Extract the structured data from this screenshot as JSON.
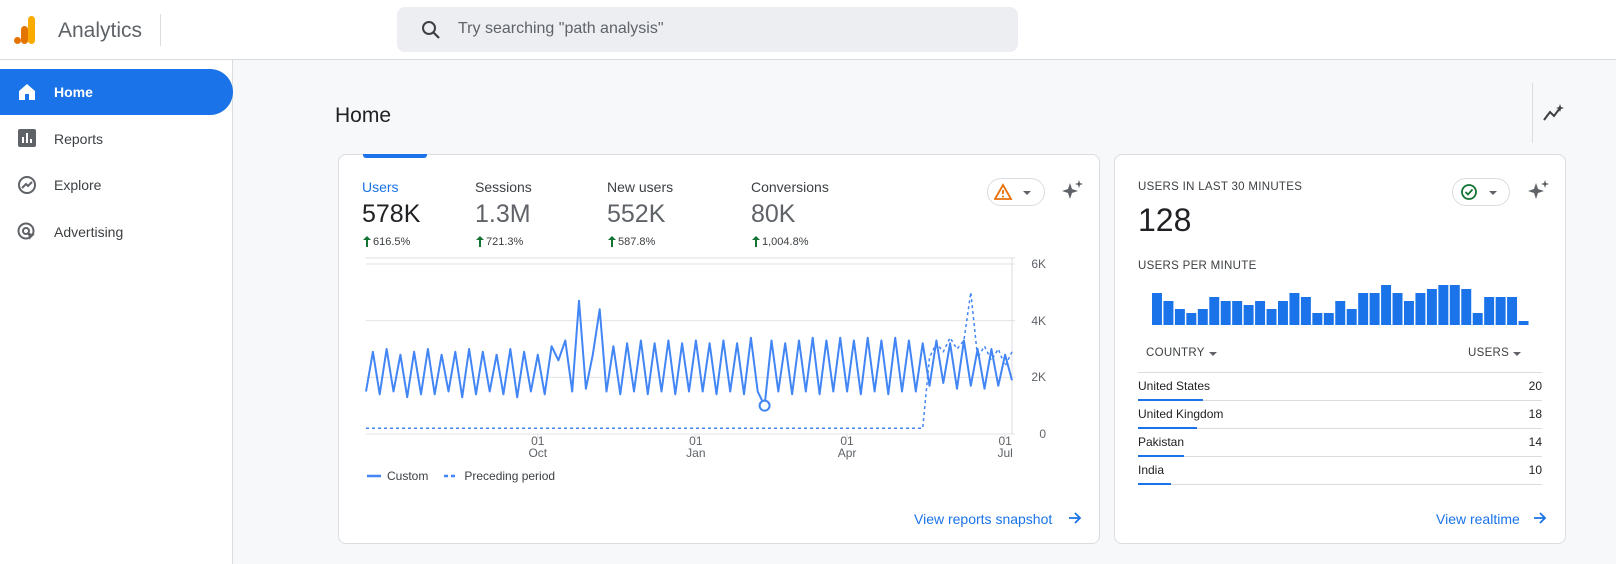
{
  "header": {
    "app_name": "Analytics",
    "search_placeholder": "Try searching \"path analysis\""
  },
  "nav": [
    "Home",
    "Reports",
    "Explore",
    "Advertising"
  ],
  "page_title": "Home",
  "overview": {
    "metrics": [
      {
        "name": "Users",
        "value": "578K",
        "change": "616.5%"
      },
      {
        "name": "Sessions",
        "value": "1.3M",
        "change": "721.3%"
      },
      {
        "name": "New users",
        "value": "552K",
        "change": "587.8%"
      },
      {
        "name": "Conversions",
        "value": "80K",
        "change": "1,004.8%"
      }
    ],
    "link": "View reports snapshot"
  },
  "realtime": {
    "heading": "USERS IN LAST 30 MINUTES",
    "value": 128,
    "table": {
      "headers": [
        "COUNTRY",
        "USERS"
      ],
      "rows": [
        [
          "United States",
          20
        ],
        [
          "United Kingdom",
          18
        ],
        [
          "Pakistan",
          14
        ],
        [
          "India",
          10
        ]
      ]
    },
    "link": "View realtime"
  },
  "chart_data": [
    {
      "type": "line",
      "categories": [
        null,
        null,
        null,
        null,
        null,
        null,
        null,
        null,
        null,
        null,
        null,
        null,
        null,
        null,
        null,
        null,
        null,
        null,
        null,
        null,
        null,
        null,
        null,
        null,
        null,
        "01\nOct",
        null,
        null,
        null,
        null,
        null,
        null,
        null,
        null,
        null,
        null,
        null,
        null,
        null,
        null,
        null,
        null,
        null,
        null,
        null,
        null,
        null,
        null,
        "01\nJan",
        null,
        null,
        null,
        null,
        null,
        null,
        null,
        null,
        null,
        null,
        null,
        null,
        null,
        null,
        null,
        null,
        null,
        null,
        null,
        null,
        null,
        "01\nApr",
        null,
        null,
        null,
        null,
        null,
        null,
        null,
        null,
        null,
        null,
        null,
        null,
        null,
        null,
        null,
        null,
        null,
        null,
        null,
        null,
        null,
        null,
        "01\nJul",
        null
      ],
      "series": [
        {
          "name": "Custom",
          "color": "#4285f4",
          "line_style": "solid",
          "values": [
            1500,
            2900,
            1400,
            3000,
            1500,
            2800,
            1300,
            2900,
            1400,
            3000,
            1400,
            2800,
            1500,
            2900,
            1300,
            3000,
            1400,
            2900,
            1500,
            2800,
            1400,
            3000,
            1300,
            2900,
            1500,
            2800,
            1400,
            3100,
            2600,
            3300,
            1500,
            4700,
            1600,
            2800,
            4400,
            1500,
            3100,
            1400,
            3200,
            1500,
            3300,
            1400,
            3200,
            1500,
            3300,
            1400,
            3200,
            1500,
            3300,
            1500,
            3200,
            1400,
            3300,
            1500,
            3200,
            1400,
            3400,
            1500,
            1000,
            3300,
            1500,
            3200,
            1400,
            3300,
            1500,
            3400,
            1400,
            3300,
            1500,
            3400,
            1500,
            3300,
            1400,
            3400,
            1500,
            3300,
            1400,
            3400,
            1500,
            3300,
            1500,
            3200,
            1700,
            3300,
            1800,
            3200,
            1600,
            3300,
            1700,
            3000,
            1600,
            3000,
            1700,
            2800,
            1900
          ]
        },
        {
          "name": "Preceding period",
          "color": "#4285f4",
          "line_style": "dashed",
          "values": [
            200,
            200,
            200,
            200,
            200,
            200,
            200,
            200,
            200,
            200,
            200,
            200,
            200,
            200,
            200,
            200,
            200,
            200,
            200,
            200,
            200,
            200,
            200,
            200,
            200,
            200,
            200,
            200,
            200,
            200,
            200,
            200,
            200,
            200,
            200,
            200,
            200,
            200,
            200,
            200,
            200,
            200,
            200,
            200,
            200,
            200,
            200,
            200,
            200,
            200,
            200,
            200,
            200,
            200,
            200,
            200,
            200,
            200,
            200,
            200,
            200,
            200,
            200,
            200,
            200,
            200,
            200,
            200,
            200,
            200,
            200,
            200,
            200,
            200,
            200,
            200,
            200,
            200,
            200,
            200,
            200,
            200,
            2700,
            3200,
            2900,
            3400,
            3000,
            3300,
            5000,
            2700,
            3100,
            2600,
            3000,
            2400,
            2900
          ]
        }
      ],
      "ylim": [
        0,
        6000
      ],
      "yticks": [
        0,
        {
          "value": 2000,
          "label": "2K"
        },
        {
          "value": 4000,
          "label": "4K"
        },
        {
          "value": 6000,
          "label": "6K"
        }
      ],
      "grid": true
    },
    {
      "type": "bar",
      "title": "USERS PER MINUTE",
      "color": "#1a73e8",
      "values": [
        8,
        6,
        4,
        3,
        4,
        7,
        6,
        6,
        5,
        6,
        4,
        6,
        8,
        7,
        3,
        3,
        6,
        4,
        8,
        8,
        10,
        8,
        6,
        8,
        9,
        10,
        10,
        9,
        3,
        7,
        7,
        7,
        1
      ]
    }
  ]
}
